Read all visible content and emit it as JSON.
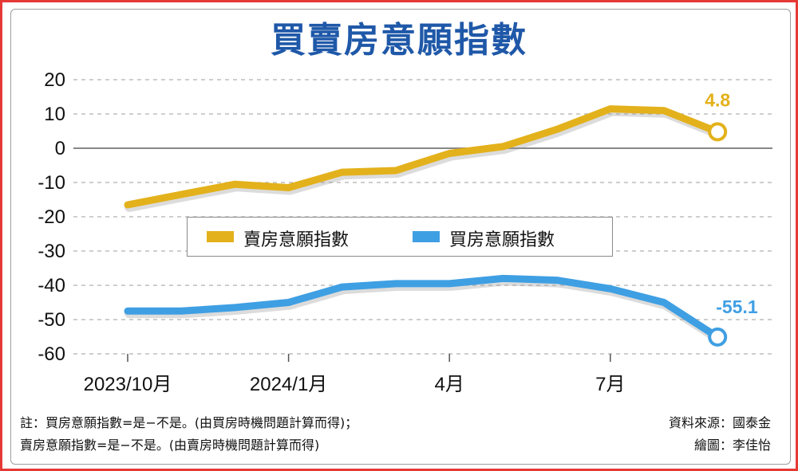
{
  "chart_data": {
    "type": "line",
    "title": "買賣房意願指數",
    "xlabel": "",
    "ylabel": "",
    "ylim": [
      -60,
      20
    ],
    "yticks": [
      20,
      10,
      0,
      -10,
      -20,
      -30,
      -40,
      -50,
      -60
    ],
    "x_tick_labels": [
      "2023/10月",
      "2024/1月",
      "4月",
      "7月"
    ],
    "grid": true,
    "legend_position": "center",
    "series": [
      {
        "name": "賣房意願指數",
        "color": "#e3b11b",
        "values": [
          -16.5,
          -13.5,
          -10.5,
          -11.5,
          -7,
          -6.5,
          -1.5,
          0.5,
          5.5,
          11.5,
          11,
          4.8
        ],
        "end_label": "4.8"
      },
      {
        "name": "買房意願指數",
        "color": "#3f9fe3",
        "values": [
          -47.5,
          -47.5,
          -46.5,
          -45,
          -40.5,
          -39.5,
          -39.5,
          -38,
          -38.5,
          -41,
          -45,
          -55.1
        ],
        "end_label": "-55.1"
      }
    ]
  },
  "notes": {
    "line1": "註：買房意願指數=是−不是。(由買房時機問題計算而得)；",
    "line2": "賣房意願指數=是−不是。(由賣房時機問題計算而得)"
  },
  "credits": {
    "source": "資料來源：國泰金",
    "artist": "繪圖：李佳怡"
  }
}
